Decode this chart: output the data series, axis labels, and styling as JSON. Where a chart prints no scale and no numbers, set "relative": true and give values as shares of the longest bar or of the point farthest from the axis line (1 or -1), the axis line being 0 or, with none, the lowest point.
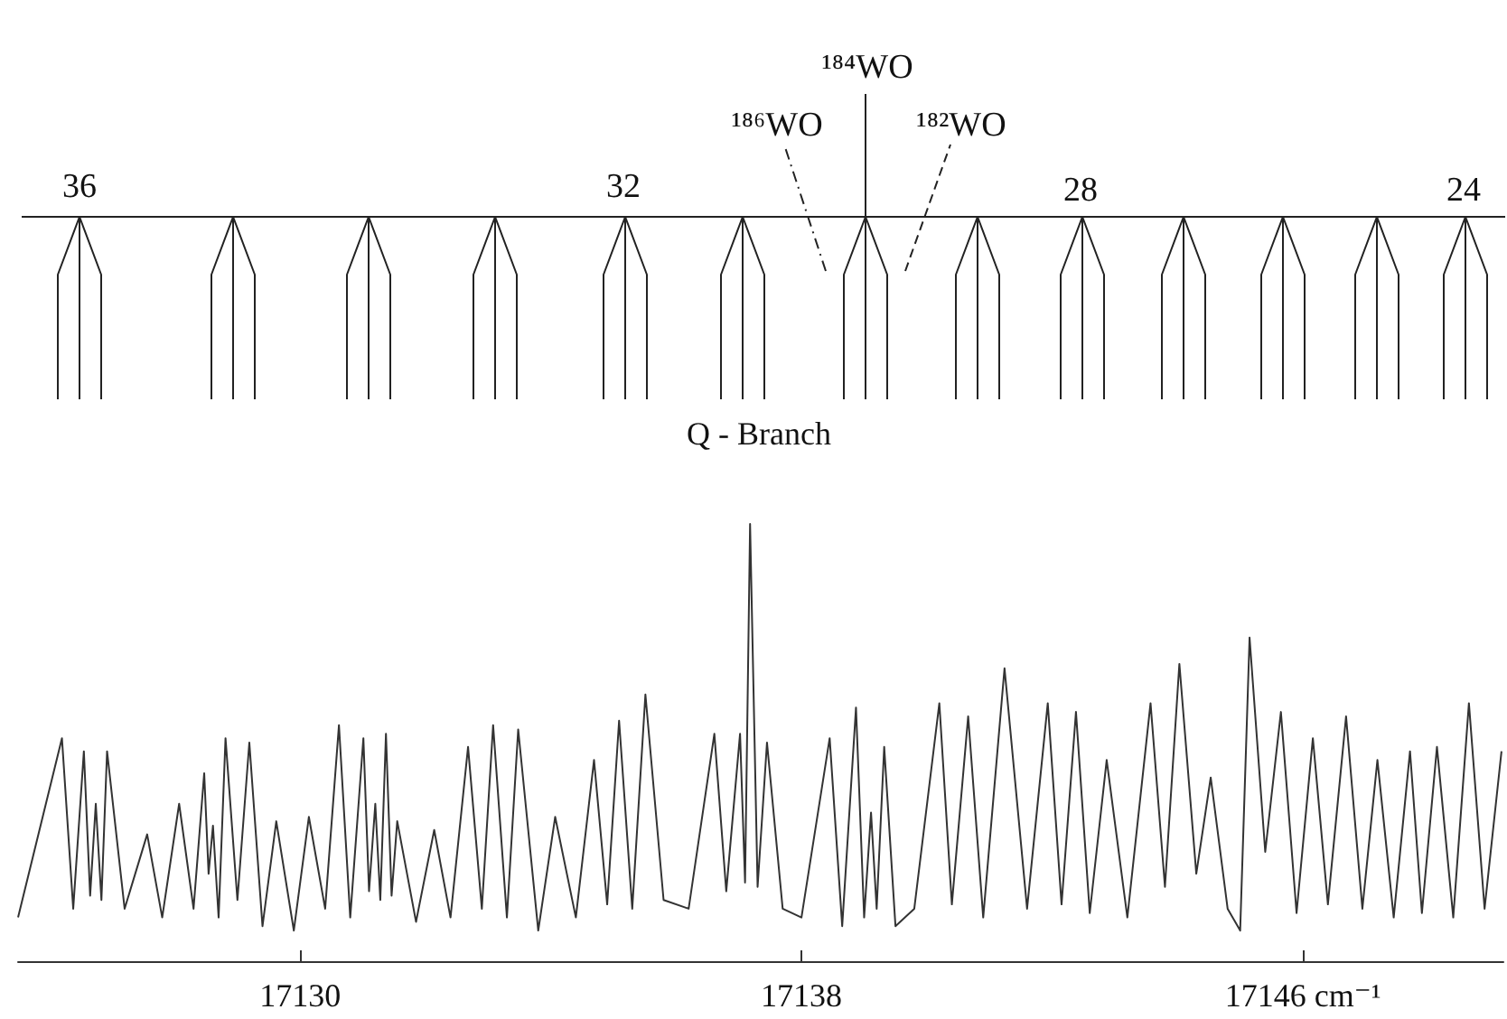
{
  "chart_data": {
    "type": "line",
    "relative": true,
    "color": "#333333",
    "xlim": [
      17125.5,
      17149.2
    ],
    "xticks": [
      17130,
      17138,
      {
        "value": 17146,
        "label": "17146 cm⁻¹"
      }
    ],
    "x": [
      17125.5,
      17126.2,
      17126.38,
      17126.55,
      17126.65,
      17126.74,
      17126.83,
      17126.92,
      17127.2,
      17127.56,
      17127.8,
      17128.07,
      17128.3,
      17128.47,
      17128.54,
      17128.61,
      17128.7,
      17128.81,
      17129.0,
      17129.19,
      17129.4,
      17129.62,
      17129.9,
      17130.14,
      17130.4,
      17130.62,
      17130.8,
      17131.01,
      17131.1,
      17131.2,
      17131.28,
      17131.37,
      17131.46,
      17131.55,
      17131.85,
      17132.14,
      17132.4,
      17132.68,
      17132.9,
      17133.08,
      17133.3,
      17133.48,
      17133.8,
      17134.07,
      17134.4,
      17134.69,
      17134.9,
      17135.09,
      17135.3,
      17135.51,
      17135.8,
      17136.2,
      17136.61,
      17136.8,
      17137.02,
      17137.1,
      17137.18,
      17137.3,
      17137.45,
      17137.7,
      17138.0,
      17138.45,
      17138.65,
      17138.87,
      17139.0,
      17139.11,
      17139.2,
      17139.32,
      17139.5,
      17139.8,
      17140.2,
      17140.4,
      17140.66,
      17140.9,
      17141.24,
      17141.6,
      17141.93,
      17142.15,
      17142.38,
      17142.6,
      17142.87,
      17143.2,
      17143.57,
      17143.8,
      17144.03,
      17144.3,
      17144.53,
      17144.8,
      17145.0,
      17145.15,
      17145.4,
      17145.65,
      17145.9,
      17146.16,
      17146.4,
      17146.69,
      17146.95,
      17147.19,
      17147.45,
      17147.71,
      17147.9,
      17148.14,
      17148.4,
      17148.65,
      17148.9,
      17149.17
    ],
    "values": [
      0.1,
      0.51,
      0.12,
      0.48,
      0.15,
      0.36,
      0.14,
      0.48,
      0.12,
      0.29,
      0.1,
      0.36,
      0.12,
      0.43,
      0.2,
      0.31,
      0.1,
      0.51,
      0.14,
      0.5,
      0.08,
      0.32,
      0.07,
      0.33,
      0.12,
      0.54,
      0.1,
      0.51,
      0.16,
      0.36,
      0.14,
      0.52,
      0.15,
      0.32,
      0.09,
      0.3,
      0.1,
      0.49,
      0.12,
      0.54,
      0.1,
      0.53,
      0.07,
      0.33,
      0.1,
      0.46,
      0.13,
      0.55,
      0.12,
      0.61,
      0.14,
      0.12,
      0.52,
      0.16,
      0.52,
      0.18,
      1.0,
      0.17,
      0.5,
      0.12,
      0.1,
      0.51,
      0.08,
      0.58,
      0.1,
      0.34,
      0.12,
      0.49,
      0.08,
      0.12,
      0.59,
      0.13,
      0.56,
      0.1,
      0.67,
      0.12,
      0.59,
      0.13,
      0.57,
      0.11,
      0.46,
      0.1,
      0.59,
      0.17,
      0.68,
      0.2,
      0.42,
      0.12,
      0.07,
      0.74,
      0.25,
      0.57,
      0.11,
      0.51,
      0.13,
      0.56,
      0.12,
      0.46,
      0.1,
      0.48,
      0.11,
      0.49,
      0.1,
      0.59,
      0.12,
      0.48
    ],
    "annotations": [
      "36",
      "32",
      "28",
      "24",
      "¹⁸⁶WO",
      "¹⁸⁴WO",
      "¹⁸²WO",
      "Q - Branch"
    ],
    "grid": false,
    "marker": "none",
    "line_style": "solid"
  }
}
